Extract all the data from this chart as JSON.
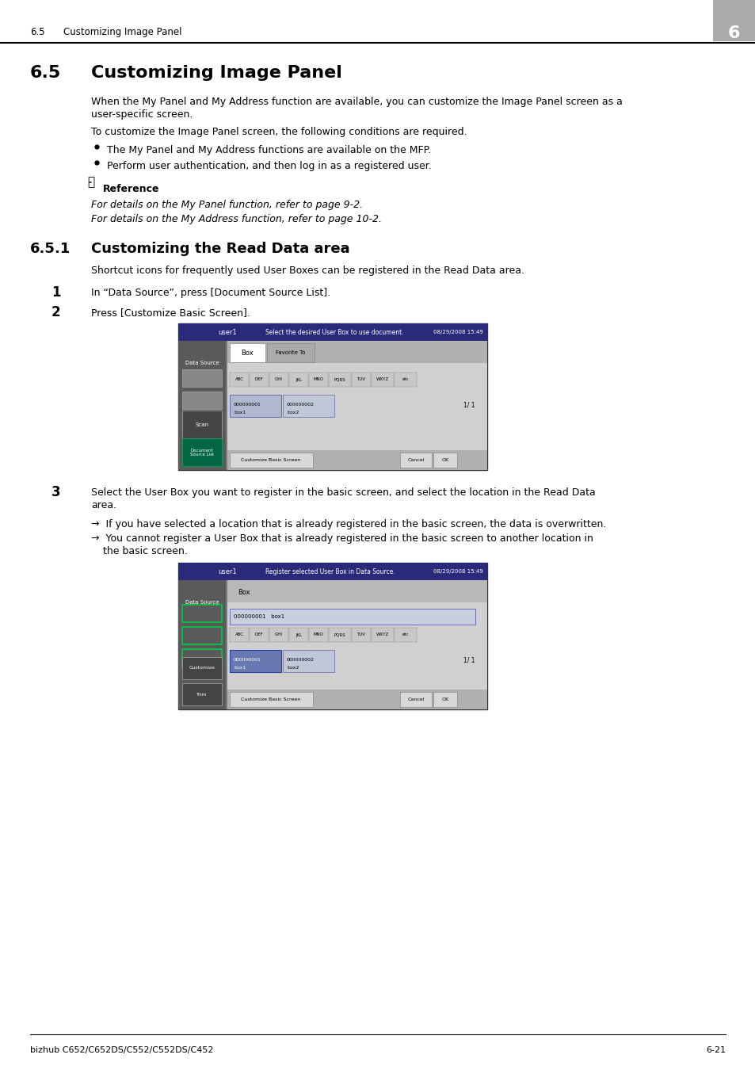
{
  "header_section": "6.5    Customizing Image Panel",
  "chapter_num": "6",
  "main_title": "6.5    Customizing Image Panel",
  "section_title": "6.5.1    Customizing the Read Data area",
  "para1": "When the My Panel and My Address function are available, you can customize the Image Panel screen as a\nuser-specific screen.",
  "para2": "To customize the Image Panel screen, the following conditions are required.",
  "bullets": [
    "The My Panel and My Address functions are available on the MFP.",
    "Perform user authentication, and then log in as a registered user."
  ],
  "ref_title": "Reference",
  "ref_line1": "For details on the My Panel function, refer to page 9-2.",
  "ref_line2": "For details on the My Address function, refer to page 10-2.",
  "section_para": "Shortcut icons for frequently used User Boxes can be registered in the Read Data area.",
  "step1_num": "1",
  "step1_text": "In “Data Source”, press [Document Source List].",
  "step2_num": "2",
  "step2_text": "Press [Customize Basic Screen].",
  "step3_num": "3",
  "step3_text": "Select the User Box you want to register in the basic screen, and select the location in the Read Data\narea.",
  "arrow1": "→  If you have selected a location that is already registered in the basic screen, the data is overwritten.",
  "arrow2": "→  You cannot register a User Box that is already registered in the basic screen to another location in\n    the basic screen.",
  "footer_left": "bizhub C652/C652DS/C552/C552DS/C452",
  "footer_right": "6-21",
  "bg_color": "#ffffff",
  "header_bg": "#c8c8c8",
  "text_color": "#000000",
  "screen1_bg": "#5a5a5a",
  "screen2_bg": "#5a5a5a"
}
